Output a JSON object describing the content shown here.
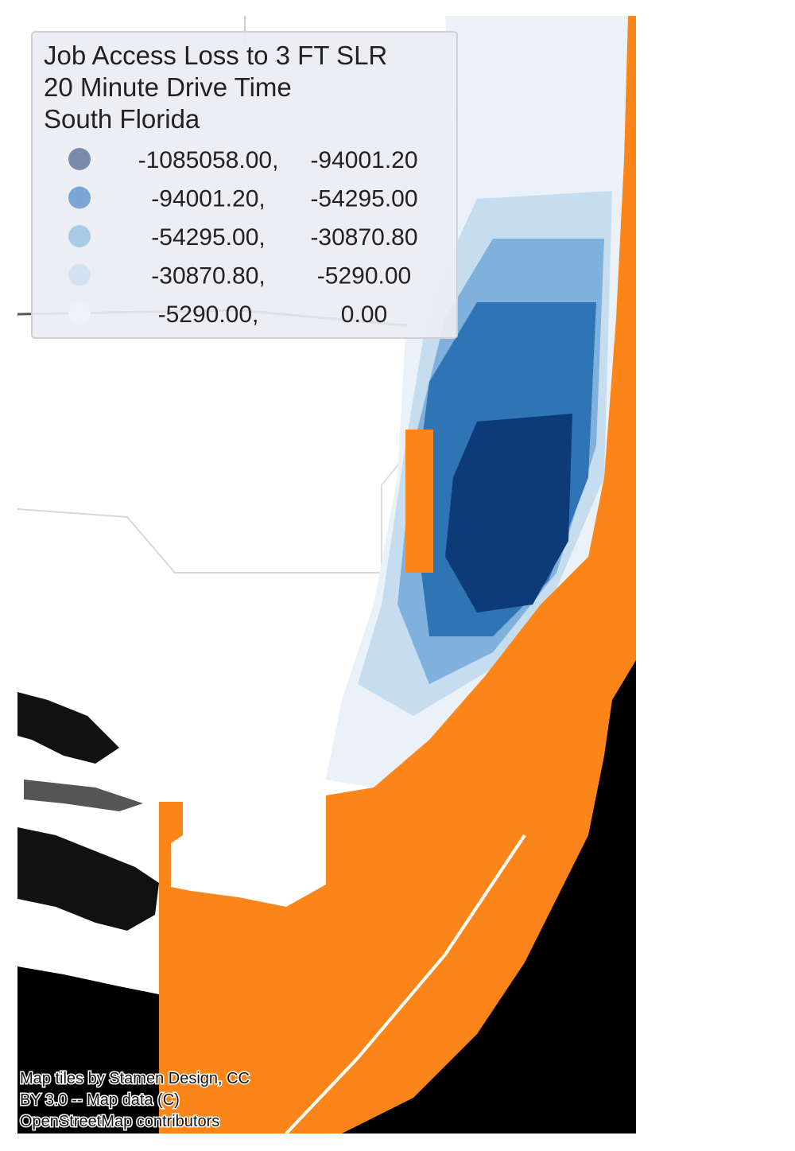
{
  "legend": {
    "title": [
      "Job Access Loss to 3 FT SLR",
      "20 Minute Drive Time",
      "South Florida"
    ],
    "items": [
      {
        "color": "#7b8bab",
        "range": [
          "-1085058.00,",
          "-94001.20"
        ]
      },
      {
        "color": "#7ba6d4",
        "range": [
          "-94001.20,",
          "-54295.00"
        ]
      },
      {
        "color": "#a9cbe6",
        "range": [
          "-54295.00,",
          "-30870.80"
        ]
      },
      {
        "color": "#d3e2f1",
        "range": [
          "-30870.80,",
          "-5290.00"
        ]
      },
      {
        "color": "#eef2f8",
        "range": [
          "-5290.00,",
          "0.00"
        ]
      }
    ]
  },
  "attribution": [
    "Map tiles by Stamen Design, CC",
    "BY 3.0 -- Map data (C)",
    "OpenStreetMap contributors"
  ]
}
